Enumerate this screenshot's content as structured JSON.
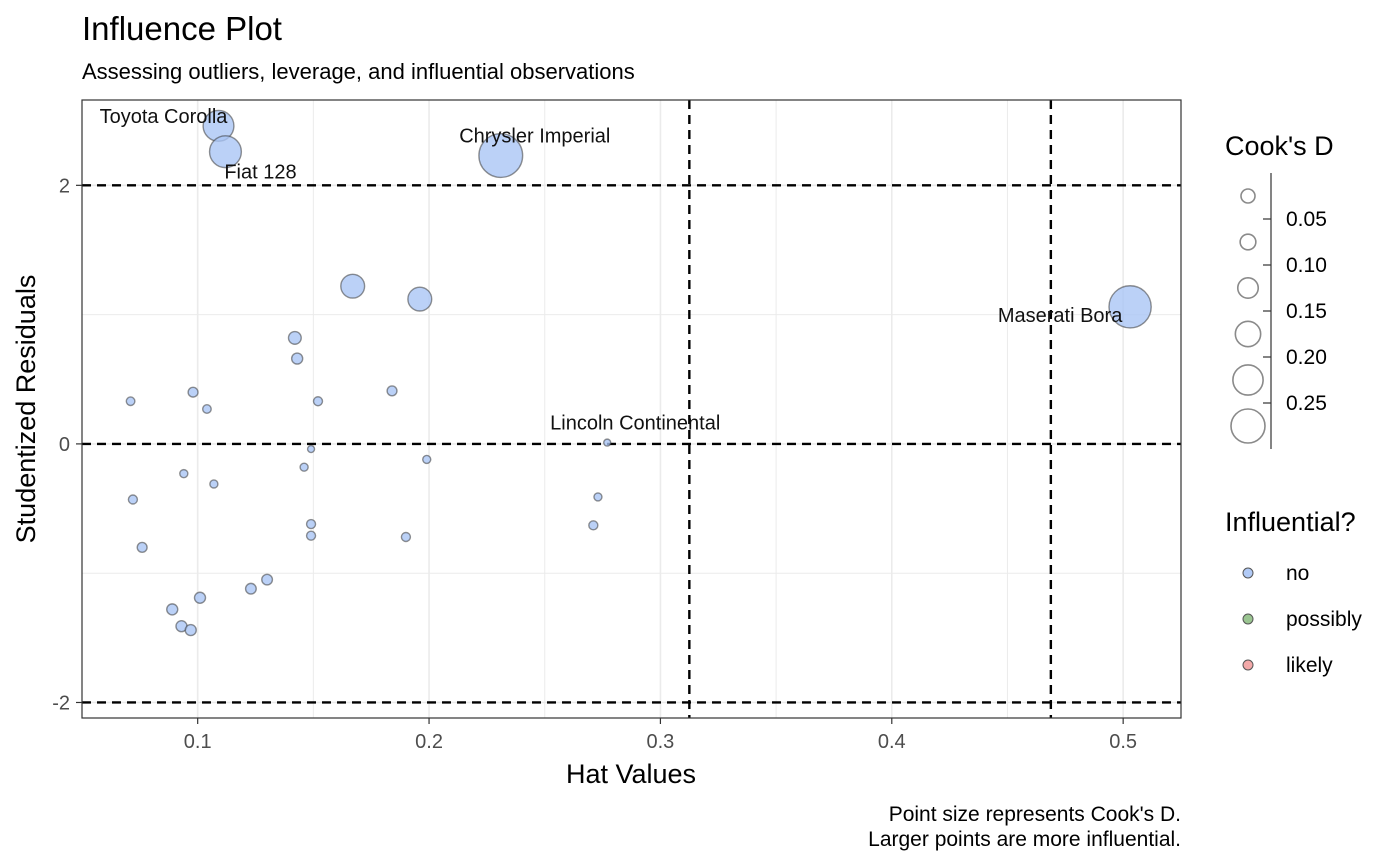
{
  "chart_data": {
    "type": "scatter",
    "title": "Influence Plot",
    "subtitle": "Assessing outliers, leverage, and influential observations",
    "xlabel": "Hat Values",
    "ylabel": "Studentized Residuals",
    "caption_lines": [
      "Point size represents Cook's D.",
      "Larger points are more influential."
    ],
    "xlim": [
      0.05,
      0.525
    ],
    "ylim": [
      -2.12,
      2.66
    ],
    "x_ticks": [
      0.1,
      0.2,
      0.3,
      0.4,
      0.5
    ],
    "x_tick_labels": [
      "0.1",
      "0.2",
      "0.3",
      "0.4",
      "0.5"
    ],
    "y_ticks": [
      -2,
      0,
      2
    ],
    "y_tick_labels": [
      "-2",
      "0",
      "2"
    ],
    "grid": true,
    "reference_lines": {
      "horizontal": [
        -2,
        0,
        2
      ],
      "vertical": [
        0.3125,
        0.46875
      ]
    },
    "point_color": "#a8c4f5",
    "point_stroke": "#3a3a3a",
    "points": [
      {
        "x": 0.109,
        "y": 2.46,
        "cooks_d": 0.117
      },
      {
        "x": 0.112,
        "y": 2.26,
        "cooks_d": 0.125
      },
      {
        "x": 0.231,
        "y": 2.23,
        "cooks_d": 0.236
      },
      {
        "x": 0.503,
        "y": 1.06,
        "cooks_d": 0.22
      },
      {
        "x": 0.277,
        "y": 0.01,
        "cooks_d": 0.006
      },
      {
        "x": 0.167,
        "y": 1.22,
        "cooks_d": 0.07
      },
      {
        "x": 0.196,
        "y": 1.12,
        "cooks_d": 0.07
      },
      {
        "x": 0.142,
        "y": 0.82,
        "cooks_d": 0.02
      },
      {
        "x": 0.143,
        "y": 0.66,
        "cooks_d": 0.015
      },
      {
        "x": 0.071,
        "y": 0.33,
        "cooks_d": 0.009
      },
      {
        "x": 0.098,
        "y": 0.4,
        "cooks_d": 0.012
      },
      {
        "x": 0.104,
        "y": 0.27,
        "cooks_d": 0.009
      },
      {
        "x": 0.152,
        "y": 0.33,
        "cooks_d": 0.01
      },
      {
        "x": 0.184,
        "y": 0.41,
        "cooks_d": 0.012
      },
      {
        "x": 0.149,
        "y": -0.04,
        "cooks_d": 0.006
      },
      {
        "x": 0.146,
        "y": -0.18,
        "cooks_d": 0.008
      },
      {
        "x": 0.199,
        "y": -0.12,
        "cooks_d": 0.008
      },
      {
        "x": 0.094,
        "y": -0.23,
        "cooks_d": 0.008
      },
      {
        "x": 0.107,
        "y": -0.31,
        "cooks_d": 0.008
      },
      {
        "x": 0.072,
        "y": -0.43,
        "cooks_d": 0.01
      },
      {
        "x": 0.273,
        "y": -0.41,
        "cooks_d": 0.008
      },
      {
        "x": 0.271,
        "y": -0.63,
        "cooks_d": 0.01
      },
      {
        "x": 0.149,
        "y": -0.62,
        "cooks_d": 0.01
      },
      {
        "x": 0.149,
        "y": -0.71,
        "cooks_d": 0.01
      },
      {
        "x": 0.19,
        "y": -0.72,
        "cooks_d": 0.01
      },
      {
        "x": 0.076,
        "y": -0.8,
        "cooks_d": 0.012
      },
      {
        "x": 0.13,
        "y": -1.05,
        "cooks_d": 0.014
      },
      {
        "x": 0.123,
        "y": -1.12,
        "cooks_d": 0.014
      },
      {
        "x": 0.101,
        "y": -1.19,
        "cooks_d": 0.015
      },
      {
        "x": 0.089,
        "y": -1.28,
        "cooks_d": 0.015
      },
      {
        "x": 0.093,
        "y": -1.41,
        "cooks_d": 0.015
      },
      {
        "x": 0.097,
        "y": -1.44,
        "cooks_d": 0.015
      }
    ],
    "point_labels": [
      {
        "text": "Toyota Corolla",
        "x": 0.109,
        "y": 2.46
      },
      {
        "text": "Fiat 128",
        "x": 0.112,
        "y": 2.26
      },
      {
        "text": "Chrysler Imperial",
        "x": 0.231,
        "y": 2.23
      },
      {
        "text": "Maserati Bora",
        "x": 0.503,
        "y": 1.06
      },
      {
        "text": "Lincoln Continental",
        "x": 0.277,
        "y": 0.01
      }
    ],
    "size_legend": {
      "title": "Cook's D",
      "breaks": [
        0.05,
        0.1,
        0.15,
        0.2,
        0.25
      ],
      "labels": [
        "0.05",
        "0.10",
        "0.15",
        "0.20",
        "0.25"
      ]
    },
    "color_legend": {
      "title": "Influential?",
      "items": [
        {
          "label": "no",
          "color": "#a8c4f5"
        },
        {
          "label": "possibly",
          "color": "#8fbf85"
        },
        {
          "label": "likely",
          "color": "#f2a0a0"
        }
      ]
    }
  }
}
